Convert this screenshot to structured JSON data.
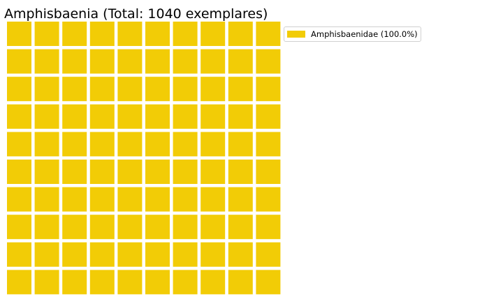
{
  "chart_data": {
    "type": "waffle",
    "title": "Amphisbaenia (Total: 1040 exemplares)",
    "total": 1040,
    "grid": {
      "rows": 10,
      "columns": 10
    },
    "categories": [
      "Amphisbaenidae"
    ],
    "values": [
      1040
    ],
    "percentages": [
      100.0
    ],
    "colors": [
      "#f2cc06"
    ],
    "legend": {
      "placement": "top-right",
      "entries": [
        {
          "label": "Amphisbaenidae (100.0%)",
          "color": "#f2cc06"
        }
      ]
    }
  }
}
